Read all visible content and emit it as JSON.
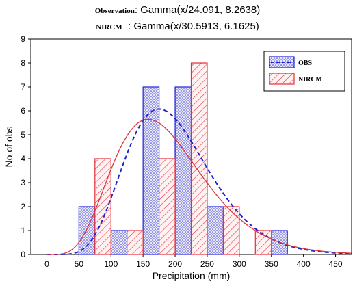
{
  "titles": {
    "obs_label": "Observation",
    "obs_text": ": Gamma(x/24.091, 8.2638)",
    "nircm_label": "NIRCM",
    "nircm_text": "  : Gamma(x/30.5913, 6.1625)"
  },
  "colors": {
    "obs": "#1f1fd6",
    "nircm": "#e0303a",
    "obs_fill": "#e8e8f6",
    "nircm_fill": "#fbe6e6"
  },
  "chart_data": {
    "type": "bar",
    "xlabel": "Precipitation (mm)",
    "ylabel": "No of obs",
    "xlim": [
      -25,
      475
    ],
    "ylim": [
      0,
      9
    ],
    "xticks": [
      0,
      50,
      100,
      150,
      200,
      250,
      300,
      350,
      400,
      450
    ],
    "yticks": [
      0,
      1,
      2,
      3,
      4,
      5,
      6,
      7,
      8,
      9
    ],
    "bin_width": 25,
    "legend_position": "top-right",
    "series": [
      {
        "name": "OBS",
        "bins": [
          {
            "x": 62.5,
            "value": 2
          },
          {
            "x": 112.5,
            "value": 1
          },
          {
            "x": 162.5,
            "value": 7
          },
          {
            "x": 212.5,
            "value": 7
          },
          {
            "x": 262.5,
            "value": 2
          },
          {
            "x": 362.5,
            "value": 1
          }
        ],
        "fit": {
          "dist": "gamma",
          "shape": 8.2638,
          "scale": 24.091,
          "style": "dashed"
        }
      },
      {
        "name": "NIRCM",
        "bins": [
          {
            "x": 87.5,
            "value": 4
          },
          {
            "x": 137.5,
            "value": 1
          },
          {
            "x": 187.5,
            "value": 4
          },
          {
            "x": 237.5,
            "value": 8
          },
          {
            "x": 287.5,
            "value": 2
          },
          {
            "x": 337.5,
            "value": 1
          }
        ],
        "fit": {
          "dist": "gamma",
          "shape": 6.1625,
          "scale": 30.5913,
          "style": "solid"
        }
      }
    ]
  }
}
